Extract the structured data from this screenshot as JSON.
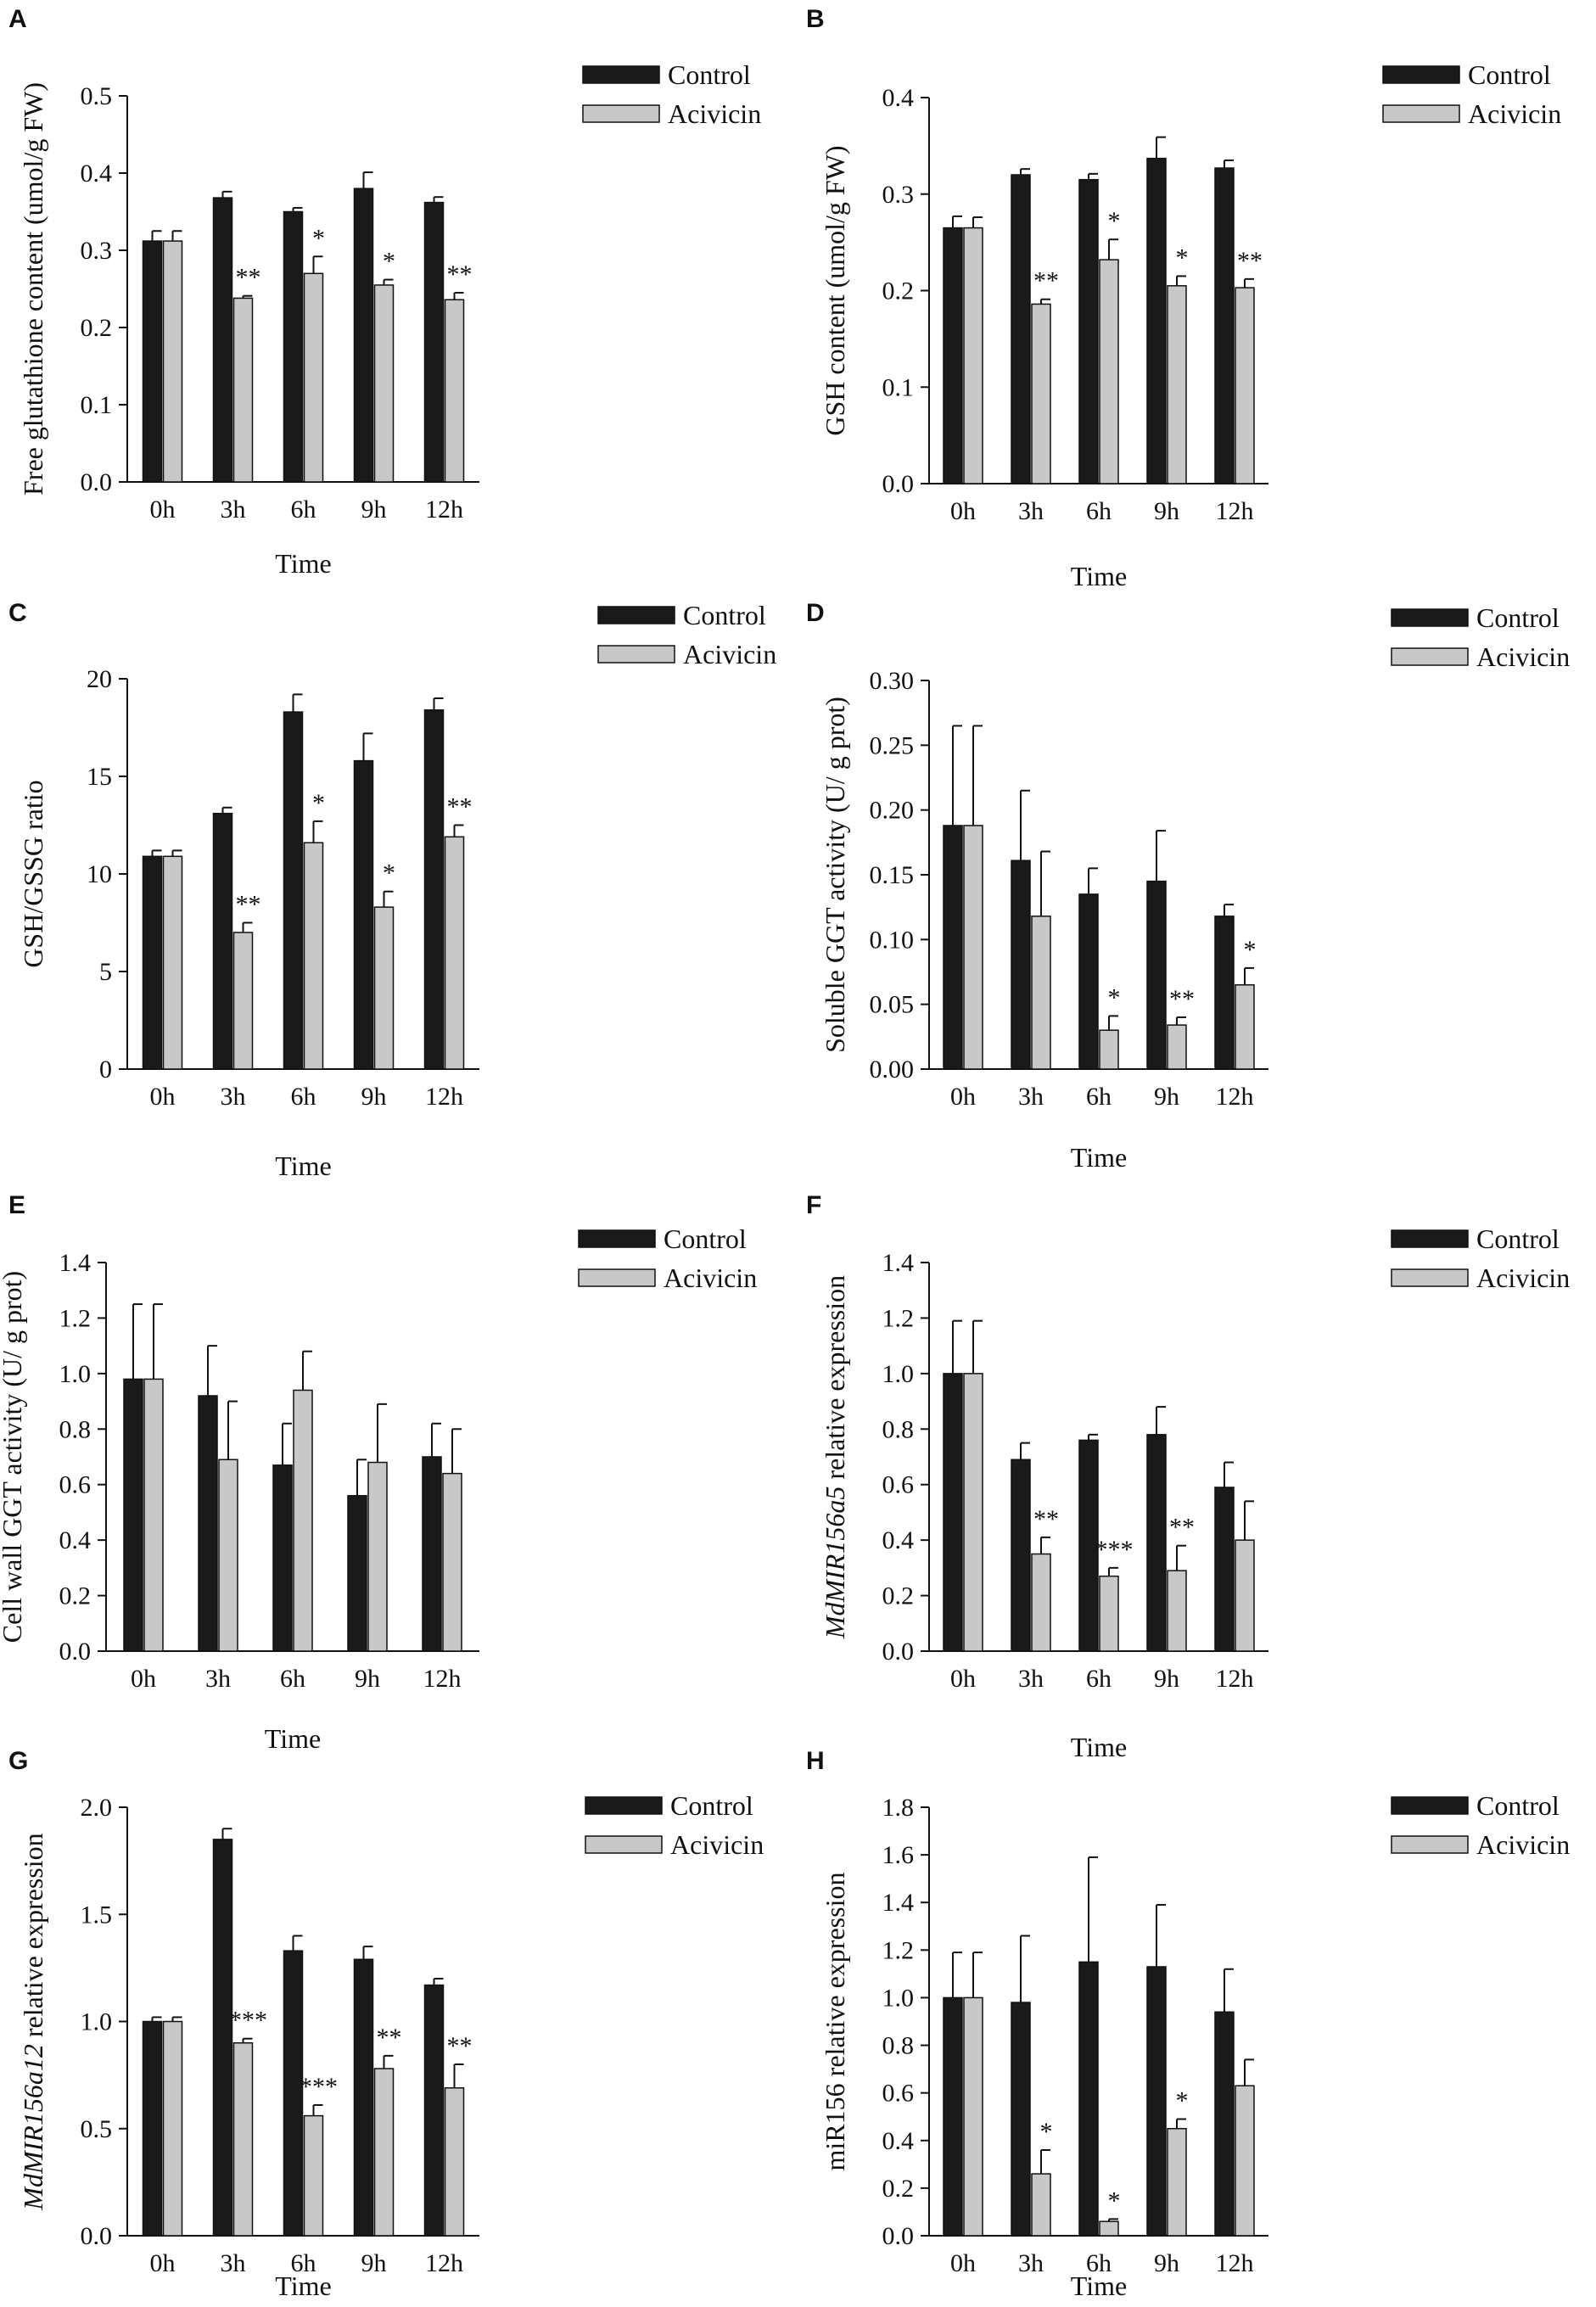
{
  "colors": {
    "control": "#1a1a1a",
    "acivicin": "#c8c8c8",
    "axis": "#111111"
  },
  "chart_data": [
    {
      "type": "bar",
      "panel": "A",
      "categories": [
        "0h",
        "3h",
        "6h",
        "9h",
        "12h"
      ],
      "xlabel": "Time",
      "ylabel": "Free glutathione content (umol/g FW)",
      "ylim": [
        0,
        0.5
      ],
      "yticks": [
        "0.0",
        "0.1",
        "0.2",
        "0.3",
        "0.4",
        "0.5"
      ],
      "legend": "top-right",
      "series": [
        {
          "name": "Control",
          "values": [
            0.312,
            0.368,
            0.35,
            0.38,
            0.362
          ],
          "errors": [
            0.013,
            0.008,
            0.005,
            0.021,
            0.007
          ],
          "sig": [
            "",
            "",
            "",
            "",
            ""
          ]
        },
        {
          "name": "Acivicin",
          "values": [
            0.312,
            0.238,
            0.27,
            0.255,
            0.236
          ],
          "errors": [
            0.013,
            0.003,
            0.022,
            0.007,
            0.009
          ],
          "sig": [
            "",
            "**",
            "*",
            "*",
            "**"
          ]
        }
      ]
    },
    {
      "type": "bar",
      "panel": "B",
      "categories": [
        "0h",
        "3h",
        "6h",
        "9h",
        "12h"
      ],
      "xlabel": "Time",
      "ylabel": "GSH content (umol/g FW)",
      "ylim": [
        0,
        0.4
      ],
      "yticks": [
        "0.0",
        "0.1",
        "0.2",
        "0.3",
        "0.4"
      ],
      "legend": "top-right",
      "series": [
        {
          "name": "Control",
          "values": [
            0.265,
            0.32,
            0.315,
            0.337,
            0.327
          ],
          "errors": [
            0.012,
            0.006,
            0.006,
            0.022,
            0.008
          ],
          "sig": [
            "",
            "",
            "",
            "",
            ""
          ]
        },
        {
          "name": "Acivicin",
          "values": [
            0.265,
            0.186,
            0.232,
            0.205,
            0.203
          ],
          "errors": [
            0.011,
            0.005,
            0.021,
            0.01,
            0.009
          ],
          "sig": [
            "",
            "**",
            "*",
            "*",
            "**"
          ]
        }
      ]
    },
    {
      "type": "bar",
      "panel": "C",
      "categories": [
        "0h",
        "3h",
        "6h",
        "9h",
        "12h"
      ],
      "xlabel": "Time",
      "ylabel": "GSH/GSSG ratio",
      "ylim": [
        0,
        20
      ],
      "yticks": [
        "0",
        "5",
        "10",
        "15",
        "20"
      ],
      "legend": "top-right",
      "series": [
        {
          "name": "Control",
          "values": [
            10.9,
            13.1,
            18.3,
            15.8,
            18.4
          ],
          "errors": [
            0.3,
            0.3,
            0.9,
            1.4,
            0.6
          ],
          "sig": [
            "",
            "",
            "",
            "",
            ""
          ]
        },
        {
          "name": "Acivicin",
          "values": [
            10.9,
            7.0,
            11.6,
            8.3,
            11.9
          ],
          "errors": [
            0.3,
            0.5,
            1.1,
            0.8,
            0.6
          ],
          "sig": [
            "",
            "**",
            "*",
            "*",
            "**"
          ]
        }
      ]
    },
    {
      "type": "bar",
      "panel": "D",
      "categories": [
        "0h",
        "3h",
        "6h",
        "9h",
        "12h"
      ],
      "xlabel": "Time",
      "ylabel": "Soluble GGT activity  (U/ g prot)",
      "ylim": [
        0,
        0.3
      ],
      "yticks": [
        "0.00",
        "0.05",
        "0.10",
        "0.15",
        "0.20",
        "0.25",
        "0.30"
      ],
      "legend": "top-right",
      "series": [
        {
          "name": "Control",
          "values": [
            0.188,
            0.161,
            0.135,
            0.145,
            0.118
          ],
          "errors": [
            0.077,
            0.054,
            0.02,
            0.039,
            0.009
          ],
          "sig": [
            "",
            "",
            "",
            "",
            ""
          ]
        },
        {
          "name": "Acivicin",
          "values": [
            0.188,
            0.118,
            0.03,
            0.034,
            0.065
          ],
          "errors": [
            0.077,
            0.05,
            0.011,
            0.006,
            0.013
          ],
          "sig": [
            "",
            "",
            "*",
            "**",
            "*"
          ]
        }
      ]
    },
    {
      "type": "bar",
      "panel": "E",
      "categories": [
        "0h",
        "3h",
        "6h",
        "9h",
        "12h"
      ],
      "xlabel": "Time",
      "ylabel": "Cell wall GGT activity (U/ g prot)",
      "ylim": [
        0,
        1.4
      ],
      "yticks": [
        "0.0",
        "0.2",
        "0.4",
        "0.6",
        "0.8",
        "1.0",
        "1.2",
        "1.4"
      ],
      "legend": "top-right",
      "series": [
        {
          "name": "Control",
          "values": [
            0.98,
            0.92,
            0.67,
            0.56,
            0.7
          ],
          "errors": [
            0.27,
            0.18,
            0.15,
            0.13,
            0.12
          ],
          "sig": [
            "",
            "",
            "",
            "",
            ""
          ]
        },
        {
          "name": "Acivicin",
          "values": [
            0.98,
            0.69,
            0.94,
            0.68,
            0.64
          ],
          "errors": [
            0.27,
            0.21,
            0.14,
            0.21,
            0.16
          ],
          "sig": [
            "",
            "",
            "",
            "",
            ""
          ]
        }
      ]
    },
    {
      "type": "bar",
      "panel": "F",
      "categories": [
        "0h",
        "3h",
        "6h",
        "9h",
        "12h"
      ],
      "xlabel": "Time",
      "ylabel": "MdMIR156a5 relative expression",
      "ylabel_italic": "MdMIR156a5",
      "ylabel_rest": " relative expression",
      "ylim": [
        0,
        1.4
      ],
      "yticks": [
        "0.0",
        "0.2",
        "0.4",
        "0.6",
        "0.8",
        "1.0",
        "1.2",
        "1.4"
      ],
      "legend": "top-right",
      "series": [
        {
          "name": "Control",
          "values": [
            1.0,
            0.69,
            0.76,
            0.78,
            0.59
          ],
          "errors": [
            0.19,
            0.06,
            0.02,
            0.1,
            0.09
          ],
          "sig": [
            "",
            "",
            "",
            "",
            ""
          ]
        },
        {
          "name": "Acivicin",
          "values": [
            1.0,
            0.35,
            0.27,
            0.29,
            0.4
          ],
          "errors": [
            0.19,
            0.06,
            0.03,
            0.09,
            0.14
          ],
          "sig": [
            "",
            "**",
            "***",
            "**",
            ""
          ]
        }
      ]
    },
    {
      "type": "bar",
      "panel": "G",
      "categories": [
        "0h",
        "3h",
        "6h",
        "9h",
        "12h"
      ],
      "xlabel": "Time",
      "ylabel": "MdMIR156a12 relative expression",
      "ylabel_italic": "MdMIR156a12",
      "ylabel_rest": " relative expression",
      "ylim": [
        0,
        2.0
      ],
      "yticks": [
        "0.0",
        "0.5",
        "1.0",
        "1.5",
        "2.0"
      ],
      "legend": "top-right",
      "series": [
        {
          "name": "Control",
          "values": [
            1.0,
            1.85,
            1.33,
            1.29,
            1.17
          ],
          "errors": [
            0.02,
            0.05,
            0.07,
            0.06,
            0.03
          ],
          "sig": [
            "",
            "",
            "",
            "",
            ""
          ]
        },
        {
          "name": "Acivicin",
          "values": [
            1.0,
            0.9,
            0.56,
            0.78,
            0.69
          ],
          "errors": [
            0.02,
            0.02,
            0.05,
            0.06,
            0.11
          ],
          "sig": [
            "",
            "***",
            "***",
            "**",
            "**"
          ]
        }
      ]
    },
    {
      "type": "bar",
      "panel": "H",
      "categories": [
        "0h",
        "3h",
        "6h",
        "9h",
        "12h"
      ],
      "xlabel": "Time",
      "ylabel": "miR156  relative expression",
      "ylim": [
        0,
        1.8
      ],
      "yticks": [
        "0.0",
        "0.2",
        "0.4",
        "0.6",
        "0.8",
        "1.0",
        "1.2",
        "1.4",
        "1.6",
        "1.8"
      ],
      "legend": "top-right",
      "series": [
        {
          "name": "Control",
          "values": [
            1.0,
            0.98,
            1.15,
            1.13,
            0.94
          ],
          "errors": [
            0.19,
            0.28,
            0.44,
            0.26,
            0.18
          ],
          "sig": [
            "",
            "",
            "",
            "",
            ""
          ]
        },
        {
          "name": "Acivicin",
          "values": [
            1.0,
            0.26,
            0.06,
            0.45,
            0.63
          ],
          "errors": [
            0.19,
            0.1,
            0.01,
            0.04,
            0.11
          ],
          "sig": [
            "",
            "*",
            "*",
            "*",
            ""
          ]
        }
      ]
    }
  ]
}
